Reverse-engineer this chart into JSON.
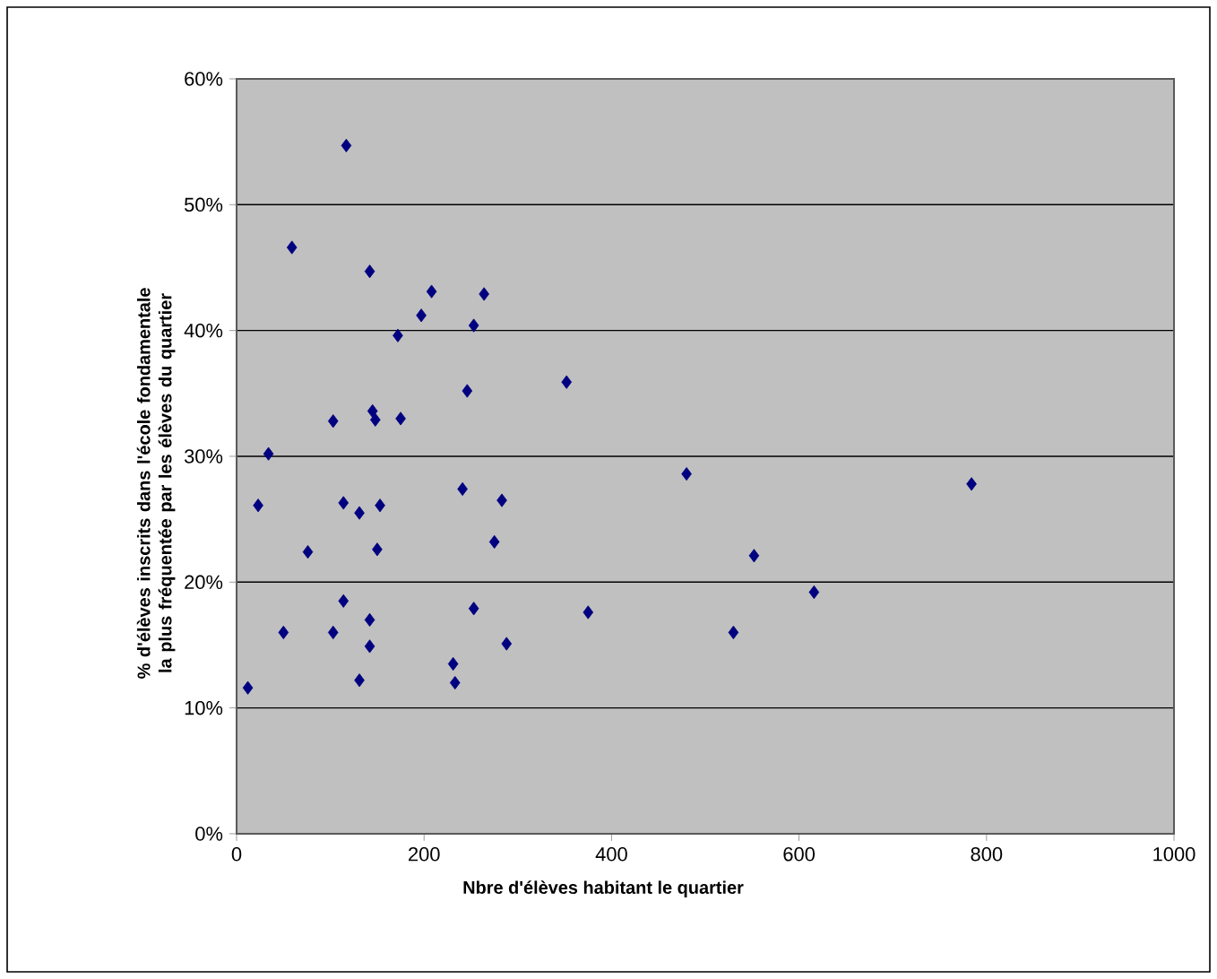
{
  "chart_data": {
    "type": "scatter",
    "xlabel": "Nbre d'élèves habitant le quartier",
    "ylabel": "% d'élèves inscrits dans l'école fondamentale la plus fréquentée par les élèves du quartier",
    "x": [
      117,
      59,
      142,
      208,
      264,
      197,
      253,
      172,
      352,
      246,
      145,
      148,
      175,
      103,
      34,
      23,
      114,
      153,
      131,
      241,
      283,
      275,
      76,
      150,
      114,
      142,
      253,
      50,
      103,
      142,
      288,
      231,
      131,
      233,
      12,
      480,
      784,
      552,
      375,
      616,
      530
    ],
    "values": [
      54.7,
      46.6,
      44.7,
      43.1,
      42.9,
      41.2,
      40.4,
      39.6,
      35.9,
      35.2,
      33.6,
      32.9,
      33.0,
      32.8,
      30.2,
      26.1,
      26.3,
      26.1,
      25.5,
      27.4,
      26.5,
      23.2,
      22.4,
      22.6,
      18.5,
      17.0,
      17.9,
      16.0,
      16.0,
      14.9,
      15.1,
      13.5,
      12.2,
      12.0,
      11.6,
      28.6,
      27.8,
      22.1,
      17.6,
      19.2,
      16.0
    ],
    "color": "#000080",
    "marker": "diamond",
    "grid": "y",
    "xlim": [
      0,
      1000
    ],
    "xticks": [
      0,
      200,
      400,
      600,
      800,
      1000
    ],
    "ylim": [
      0,
      60
    ],
    "yticks": [
      {
        "value": 0,
        "label": "0%"
      },
      {
        "value": 10,
        "label": "10%"
      },
      {
        "value": 20,
        "label": "20%"
      },
      {
        "value": 30,
        "label": "30%"
      },
      {
        "value": 40,
        "label": "40%"
      },
      {
        "value": 50,
        "label": "50%"
      },
      {
        "value": 60,
        "label": "60%"
      }
    ]
  }
}
